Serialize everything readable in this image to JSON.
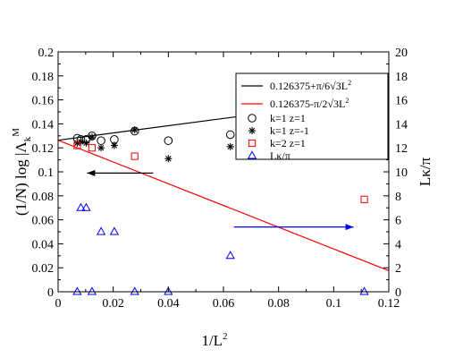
{
  "chart_data": {
    "type": "scatter",
    "xlabel": {
      "main": "1/L",
      "sup": "2"
    },
    "ylabel_left": {
      "prefix": "(1/N) log |Λ",
      "sub": "k",
      "sup": "M"
    },
    "ylabel_right": "Lκ/π",
    "xlim": [
      0,
      0.12
    ],
    "ylim_left": [
      0,
      0.2
    ],
    "ylim_right": [
      0,
      20
    ],
    "x_ticks": [
      "0",
      "0.02",
      "0.04",
      "0.06",
      "0.08",
      "0.1",
      "0.12"
    ],
    "y_ticks_left": [
      "0",
      "0.02",
      "0.04",
      "0.06",
      "0.08",
      "0.1",
      "0.12",
      "0.14",
      "0.16",
      "0.18",
      "0.2"
    ],
    "y_ticks_right": [
      "0",
      "2",
      "4",
      "6",
      "8",
      "10",
      "12",
      "14",
      "16",
      "18",
      "20"
    ],
    "legend_position": "top-right",
    "fit_lines": [
      {
        "name": "0.126375+π/6√3L",
        "sup": "2",
        "color": "#000000",
        "intercept": 0.126375,
        "slope": 0.3023
      },
      {
        "name": "0.126375-π/2√3L",
        "sup": "2",
        "color": "#ff0000",
        "intercept": 0.126375,
        "slope": -0.9069
      }
    ],
    "series": [
      {
        "name": "k=1 z=1",
        "marker": "circle",
        "color": "#000000",
        "axis": "left",
        "x": [
          0.00694,
          0.00826,
          0.0102,
          0.0123,
          0.0156,
          0.0204,
          0.0278,
          0.04,
          0.0625,
          0.1111
        ],
        "y": [
          0.128,
          0.127,
          0.127,
          0.13,
          0.126,
          0.127,
          0.134,
          0.126,
          0.131,
          0.154
        ]
      },
      {
        "name": "k=1 z=-1",
        "marker": "star",
        "color": "#000000",
        "axis": "left",
        "x": [
          0.00694,
          0.00826,
          0.0102,
          0.0123,
          0.0156,
          0.0204,
          0.0278,
          0.04,
          0.0625,
          0.1111
        ],
        "y": [
          0.124,
          0.125,
          0.124,
          0.129,
          0.12,
          0.122,
          0.135,
          0.111,
          0.121,
          0.155
        ]
      },
      {
        "name": "k=2 z=1",
        "marker": "square",
        "color": "#ff0000",
        "axis": "left",
        "x": [
          0.00694,
          0.0123,
          0.0278,
          0.1111
        ],
        "y": [
          0.122,
          0.12,
          0.113,
          0.077
        ]
      },
      {
        "name": "Lκ/π",
        "marker": "triangle",
        "color": "#0000ff",
        "axis": "right",
        "x": [
          0.00694,
          0.00826,
          0.0102,
          0.0123,
          0.0156,
          0.0204,
          0.0278,
          0.04,
          0.0625,
          0.1111
        ],
        "y": [
          0,
          7,
          7,
          0,
          5,
          5,
          0,
          0,
          3,
          0
        ]
      }
    ],
    "annotations": [
      {
        "type": "arrow",
        "color": "#000000",
        "from": [
          0.0345,
          0.099
        ],
        "to": [
          0.0105,
          0.099
        ],
        "direction": "left",
        "axis": "left"
      },
      {
        "type": "arrow",
        "color": "#0000ff",
        "from": [
          0.0638,
          0.054
        ],
        "to": [
          0.1072,
          0.054
        ],
        "direction": "right",
        "axis": "left"
      }
    ]
  }
}
